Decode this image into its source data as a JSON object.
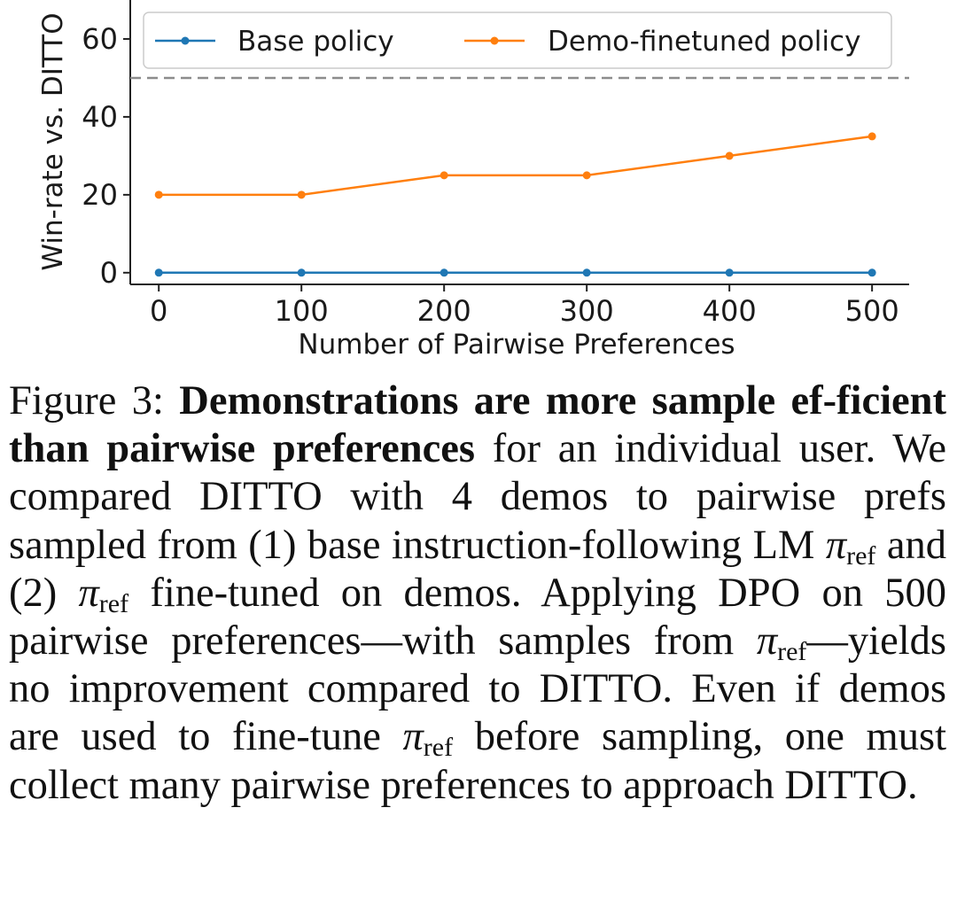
{
  "chart_data": {
    "type": "line",
    "x": [
      0,
      100,
      200,
      300,
      400,
      500
    ],
    "xticks": [
      "0",
      "100",
      "200",
      "300",
      "400",
      "500"
    ],
    "yticks": [
      "0",
      "20",
      "40",
      "60"
    ],
    "xlim": [
      -20,
      526
    ],
    "ylim": [
      -3,
      70
    ],
    "xlabel": "Number of Pairwise Preferences",
    "ylabel": "Win-rate vs. DITTO",
    "reference_line": {
      "y": 50,
      "style": "dashed",
      "color": "#8c8c8c"
    },
    "legend_position": "top",
    "grid": false,
    "series": [
      {
        "name": "Base policy",
        "color": "#1f77b4",
        "values": [
          0,
          0,
          0,
          0,
          0,
          0
        ]
      },
      {
        "name": "Demo-finetuned policy",
        "color": "#ff7f0e",
        "values": [
          20,
          20,
          25,
          25,
          30,
          35
        ]
      }
    ]
  },
  "caption": {
    "prefix": "Figure 3: ",
    "bold": "Demonstrations are more sample ef-­ficient than pairwise preferences",
    "part1": " for an individ­ual user. We compared DITTO with 4 demos to pairwise prefs sampled from (1) base instruction-following LM ",
    "pi": "π",
    "ref": "ref",
    "part2": " and (2) ",
    "part3": " fine-tuned on demos. Applying DPO on 500 pairwise preferences—with samples from ",
    "part4": "—yields no improvement com­pared to DITTO. Even if demos are used to fine-tune ",
    "part5": " before sampling, one must collect many pairwise preferences to approach DITTO."
  }
}
